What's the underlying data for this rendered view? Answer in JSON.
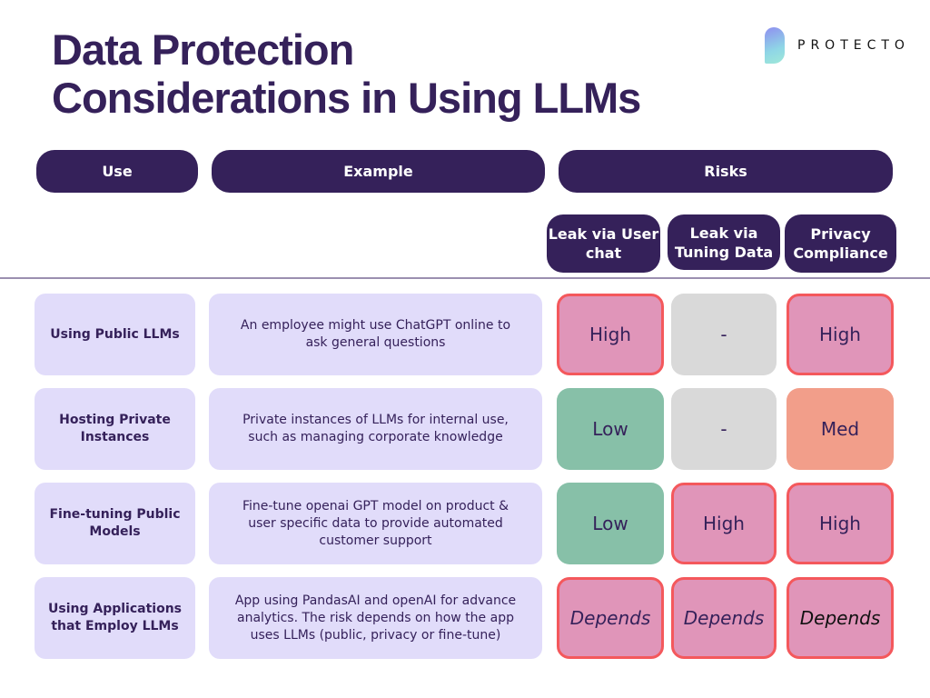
{
  "title": {
    "line1": "Data Protection",
    "line2": "Considerations in Using LLMs"
  },
  "logo": {
    "text": "PROTECTO"
  },
  "headers": {
    "use": "Use",
    "example": "Example",
    "risks": "Risks"
  },
  "risk_columns": [
    "Leak via User chat",
    "Leak via Tuning Data",
    "Privacy Compliance"
  ],
  "colors": {
    "dark": "#35215a",
    "row_bg": "#e1dcfa",
    "high": "#e095b9",
    "high_border": "#f4585c",
    "none": "#d9d9d9",
    "low": "#87c0a8",
    "med": "#f29e8a"
  },
  "rows": [
    {
      "use": "Using Public LLMs",
      "example": "An employee might use ChatGPT online to ask general questions",
      "risks": [
        {
          "v": "High",
          "k": "high"
        },
        {
          "v": "-",
          "k": "none"
        },
        {
          "v": "High",
          "k": "high"
        }
      ]
    },
    {
      "use": "Hosting Private Instances",
      "example": "Private instances of LLMs for internal use, such as managing corporate knowledge",
      "risks": [
        {
          "v": "Low",
          "k": "low"
        },
        {
          "v": "-",
          "k": "none"
        },
        {
          "v": "Med",
          "k": "med"
        }
      ]
    },
    {
      "use": "Fine-tuning Public Models",
      "example": "Fine-tune openai GPT model on product & user specific data to provide automated customer support",
      "risks": [
        {
          "v": "Low",
          "k": "low"
        },
        {
          "v": "High",
          "k": "high"
        },
        {
          "v": "High",
          "k": "high"
        }
      ]
    },
    {
      "use": "Using Applications that Employ LLMs",
      "example": "App using PandasAI and openAI for advance analytics. The risk depends on how the app uses  LLMs (public, privacy or fine-tune)",
      "risks": [
        {
          "v": "Depends",
          "k": "dep"
        },
        {
          "v": "Depends",
          "k": "dep"
        },
        {
          "v": "Depends",
          "k": "dep"
        }
      ]
    }
  ]
}
